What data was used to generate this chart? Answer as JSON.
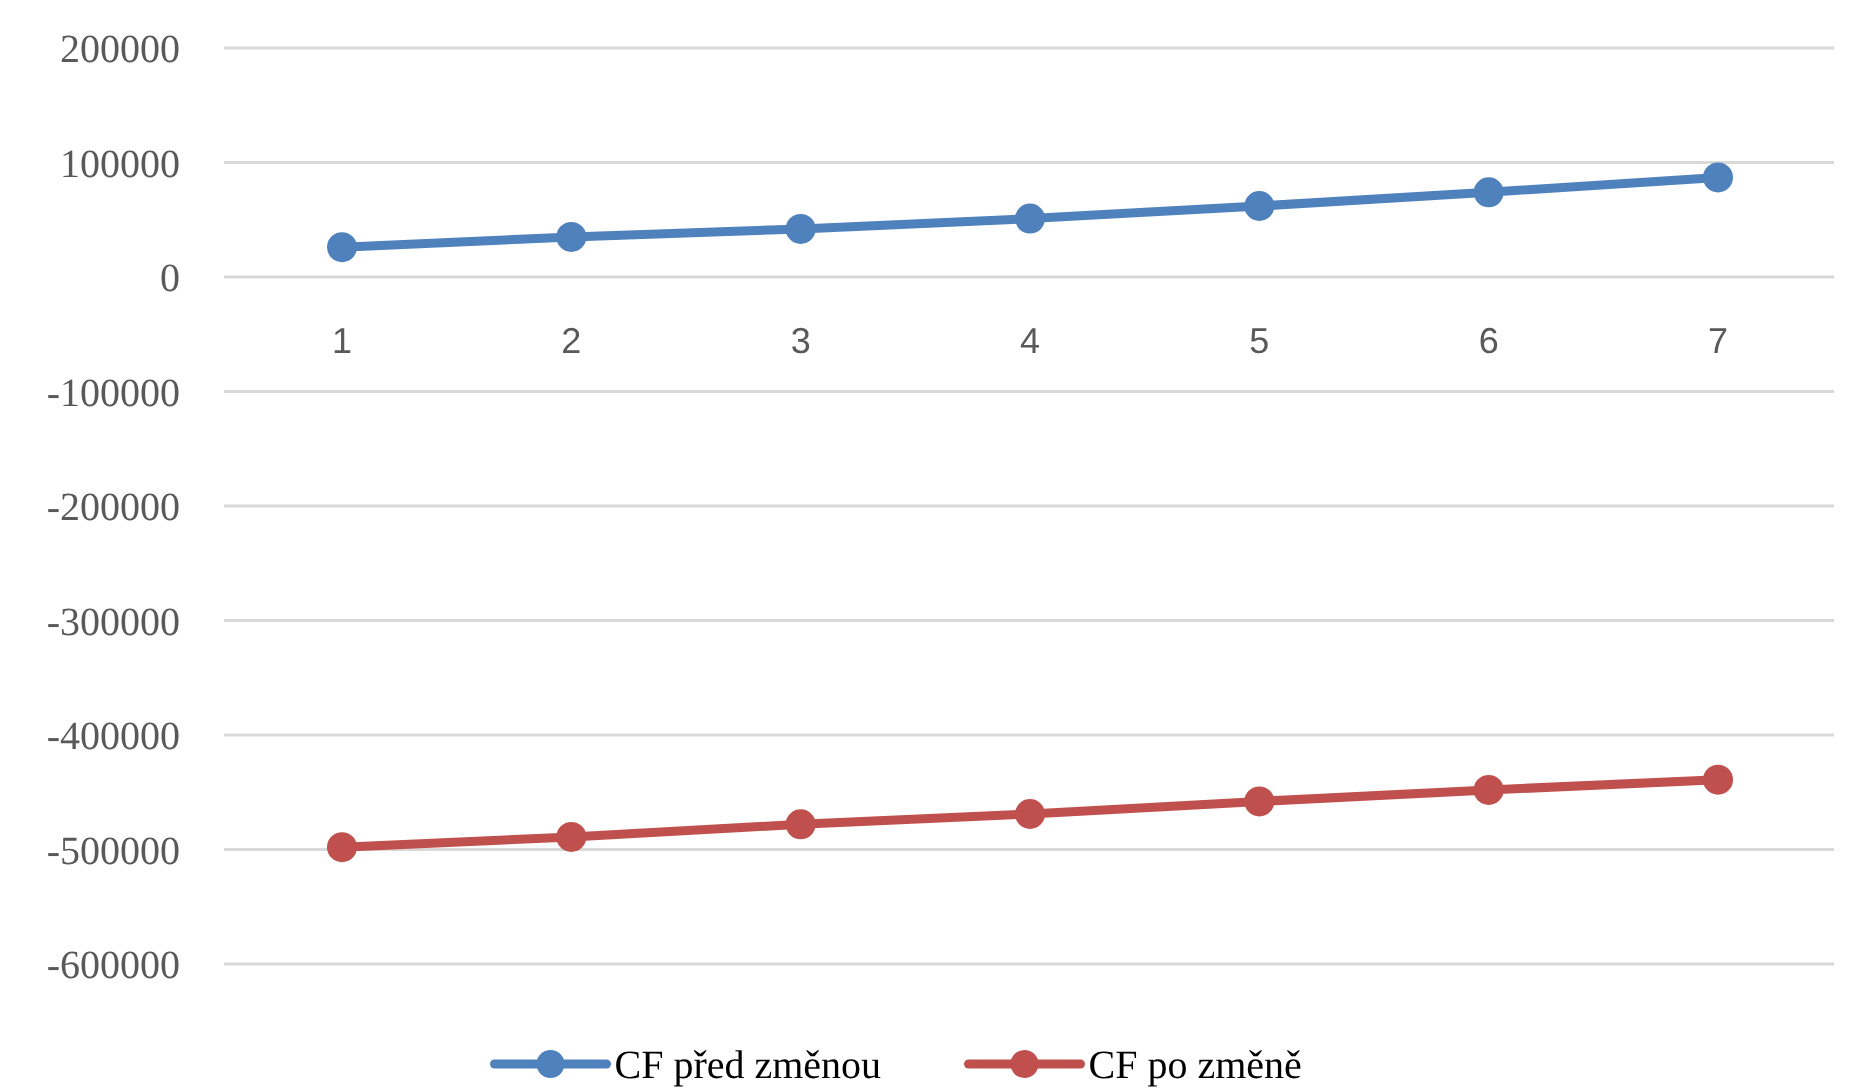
{
  "chart_data": {
    "type": "line",
    "categories": [
      "1",
      "2",
      "3",
      "4",
      "5",
      "6",
      "7"
    ],
    "series": [
      {
        "name": "CF před změnou",
        "color": "#4f81bd",
        "values": [
          26000,
          35000,
          42000,
          51000,
          62000,
          74000,
          87000
        ]
      },
      {
        "name": "CF po změně",
        "color": "#c0504d",
        "values": [
          -498000,
          -489000,
          -478000,
          -469000,
          -458000,
          -448000,
          -439000
        ]
      }
    ],
    "ylim": [
      -600000,
      200000
    ],
    "yticks": [
      -600000,
      -500000,
      -400000,
      -300000,
      -200000,
      -100000,
      0,
      100000,
      200000
    ],
    "grid": "y",
    "legend": "bottom",
    "marker": "circle",
    "line_style": "solid"
  }
}
